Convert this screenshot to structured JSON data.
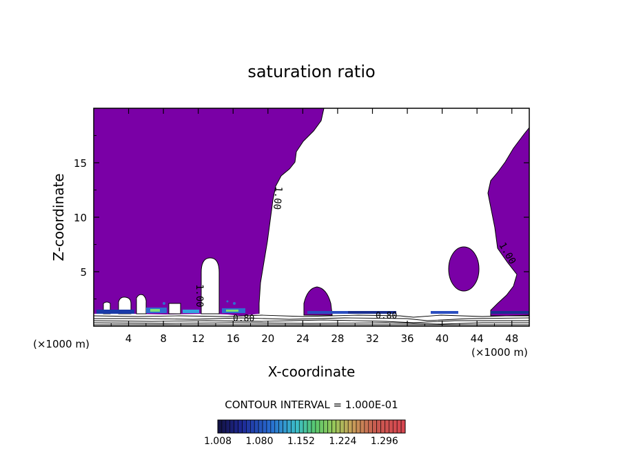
{
  "chart_data": {
    "type": "heatmap",
    "title": "saturation ratio",
    "xlabel": "X-coordinate",
    "ylabel": "Z-coordinate",
    "x_unit": "(×1000 m)",
    "x_unit_right": "(×1000 m)",
    "xlim": [
      0,
      50
    ],
    "ylim": [
      0,
      20
    ],
    "x_ticks": [
      "4",
      "8",
      "12",
      "16",
      "20",
      "24",
      "28",
      "32",
      "36",
      "40",
      "44",
      "48"
    ],
    "y_ticks": [
      "5",
      "10",
      "15"
    ],
    "contour_interval": "CONTOUR INTERVAL = 1.000E-01",
    "contour_labels": [
      "1.00",
      "1.00",
      "1.00",
      "0.80",
      "0.80"
    ],
    "colorbar": {
      "labels": [
        "1.008",
        "1.080",
        "1.152",
        "1.224",
        "1.296"
      ],
      "min": 1.008,
      "max": 1.332
    },
    "fill_color": "#7a00a6"
  }
}
